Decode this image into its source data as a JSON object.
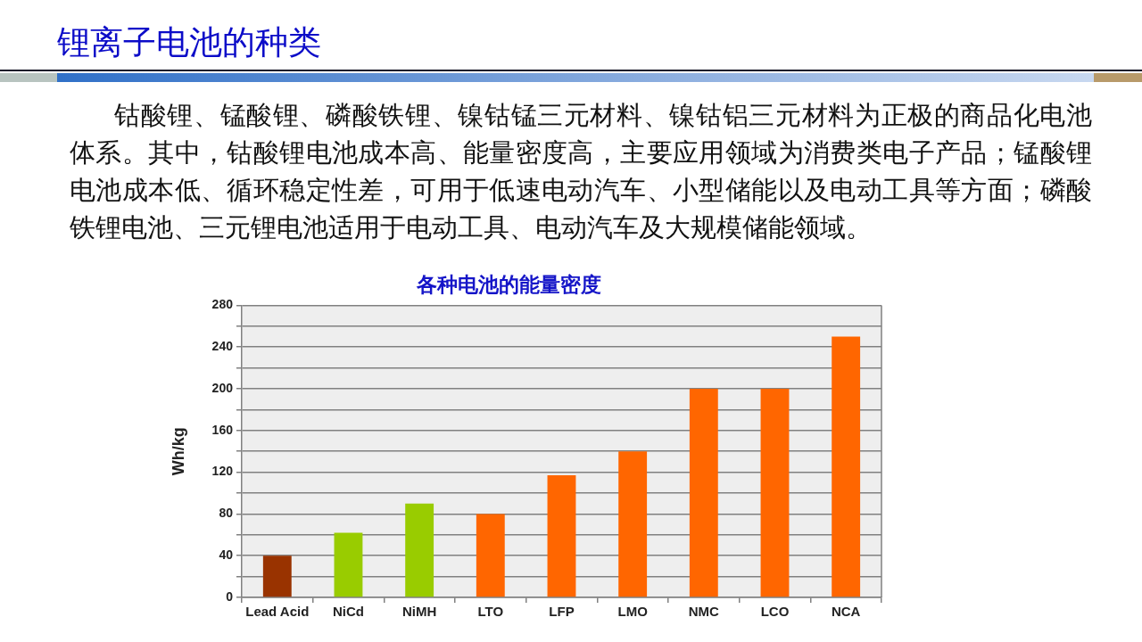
{
  "chart_data": {
    "type": "bar",
    "title": "锂离子电池的种类",
    "subtitle": "各种电池的能量密度",
    "ylabel": "Wh/kg",
    "categories": [
      "Lead Acid",
      "NiCd",
      "NiMH",
      "LTO",
      "LFP",
      "LMO",
      "NMC",
      "LCO",
      "NCA"
    ],
    "values": [
      40,
      62,
      90,
      80,
      117,
      140,
      200,
      200,
      250
    ],
    "colors": [
      "#993300",
      "#99cc00",
      "#99cc00",
      "#ff6600",
      "#ff6600",
      "#ff6600",
      "#ff6600",
      "#ff6600",
      "#ff6600"
    ],
    "ylim": [
      0,
      280
    ],
    "yticks": [
      0,
      {
        "value": 20,
        "label": null
      },
      40,
      {
        "value": 60,
        "label": null
      },
      80,
      {
        "value": 100,
        "label": null
      },
      120,
      {
        "value": 140,
        "label": null
      },
      160,
      {
        "value": 180,
        "label": null
      },
      200,
      {
        "value": 220,
        "label": null
      },
      240,
      {
        "value": 260,
        "label": null
      },
      280
    ],
    "grid": "y",
    "annotations": [
      "钴酸锂、锰酸锂、磷酸铁锂、镍钴锰三元材料、镍钴铝三元材料为正极的商品化电池体系。其中，钴酸锂电池成本高、能量密度高，主要应用领域为消费类电子产品；锰酸锂电池成本低、循环稳定性差，可用于低速电动汽车、小型储能以及电动工具等方面；磷酸铁锂电池、三元锂电池适用于电动工具、电动汽车及大规模储能领域。"
    ]
  }
}
